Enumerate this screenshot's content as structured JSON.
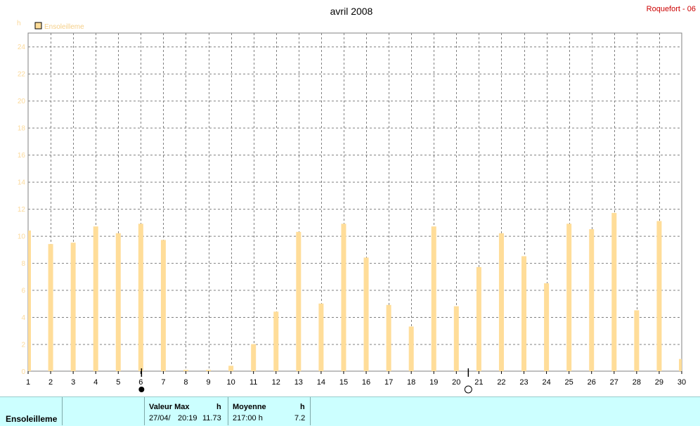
{
  "header": {
    "title": "avril 2008",
    "station": "Roquefort - 06"
  },
  "colors": {
    "bar": "#ffdd99",
    "grid": "#808080",
    "axis_label": "#fbd999",
    "station": "#cc0000",
    "footer_bg": "#ccffff"
  },
  "legend": {
    "label": "Ensoleilleme"
  },
  "moon_phases": [
    {
      "day": 6,
      "phase": "full-moon-dark"
    },
    {
      "day": 20.5,
      "phase": "new-moon-outline"
    }
  ],
  "chart_data": {
    "type": "bar",
    "title": "avril 2008",
    "ylabel": "h",
    "xlabel": "",
    "ylim": [
      0,
      25
    ],
    "yticks": [
      0,
      2,
      4,
      6,
      8,
      10,
      12,
      14,
      16,
      18,
      20,
      22,
      24
    ],
    "xticks": [
      1,
      2,
      3,
      4,
      5,
      6,
      7,
      8,
      9,
      10,
      11,
      12,
      13,
      14,
      15,
      16,
      17,
      18,
      19,
      20,
      21,
      22,
      23,
      24,
      25,
      26,
      27,
      28,
      29,
      30
    ],
    "grid": true,
    "legend_position": "top-left",
    "series": [
      {
        "name": "Ensoleilleme",
        "x": [
          1,
          2,
          3,
          4,
          5,
          6,
          7,
          8,
          9,
          10,
          11,
          12,
          13,
          14,
          15,
          16,
          17,
          18,
          19,
          20,
          21,
          22,
          23,
          24,
          25,
          26,
          27,
          28,
          29,
          30
        ],
        "values": [
          10.4,
          9.4,
          9.5,
          10.7,
          10.2,
          10.9,
          9.7,
          0.1,
          0.1,
          0.4,
          2.0,
          4.4,
          10.3,
          5.0,
          10.9,
          8.4,
          4.9,
          3.3,
          10.7,
          4.8,
          7.7,
          10.2,
          8.5,
          6.5,
          10.9,
          10.5,
          11.7,
          4.5,
          11.1,
          0.9
        ]
      }
    ]
  },
  "footer": {
    "series_label": "Ensoleilleme",
    "max": {
      "header": "Valeur Max",
      "unit": "h",
      "date": "27/04/",
      "time": "20:19",
      "value": "11.73"
    },
    "mean": {
      "header": "Moyenne",
      "unit": "h",
      "total": "217:00 h",
      "value": "7.2"
    }
  }
}
